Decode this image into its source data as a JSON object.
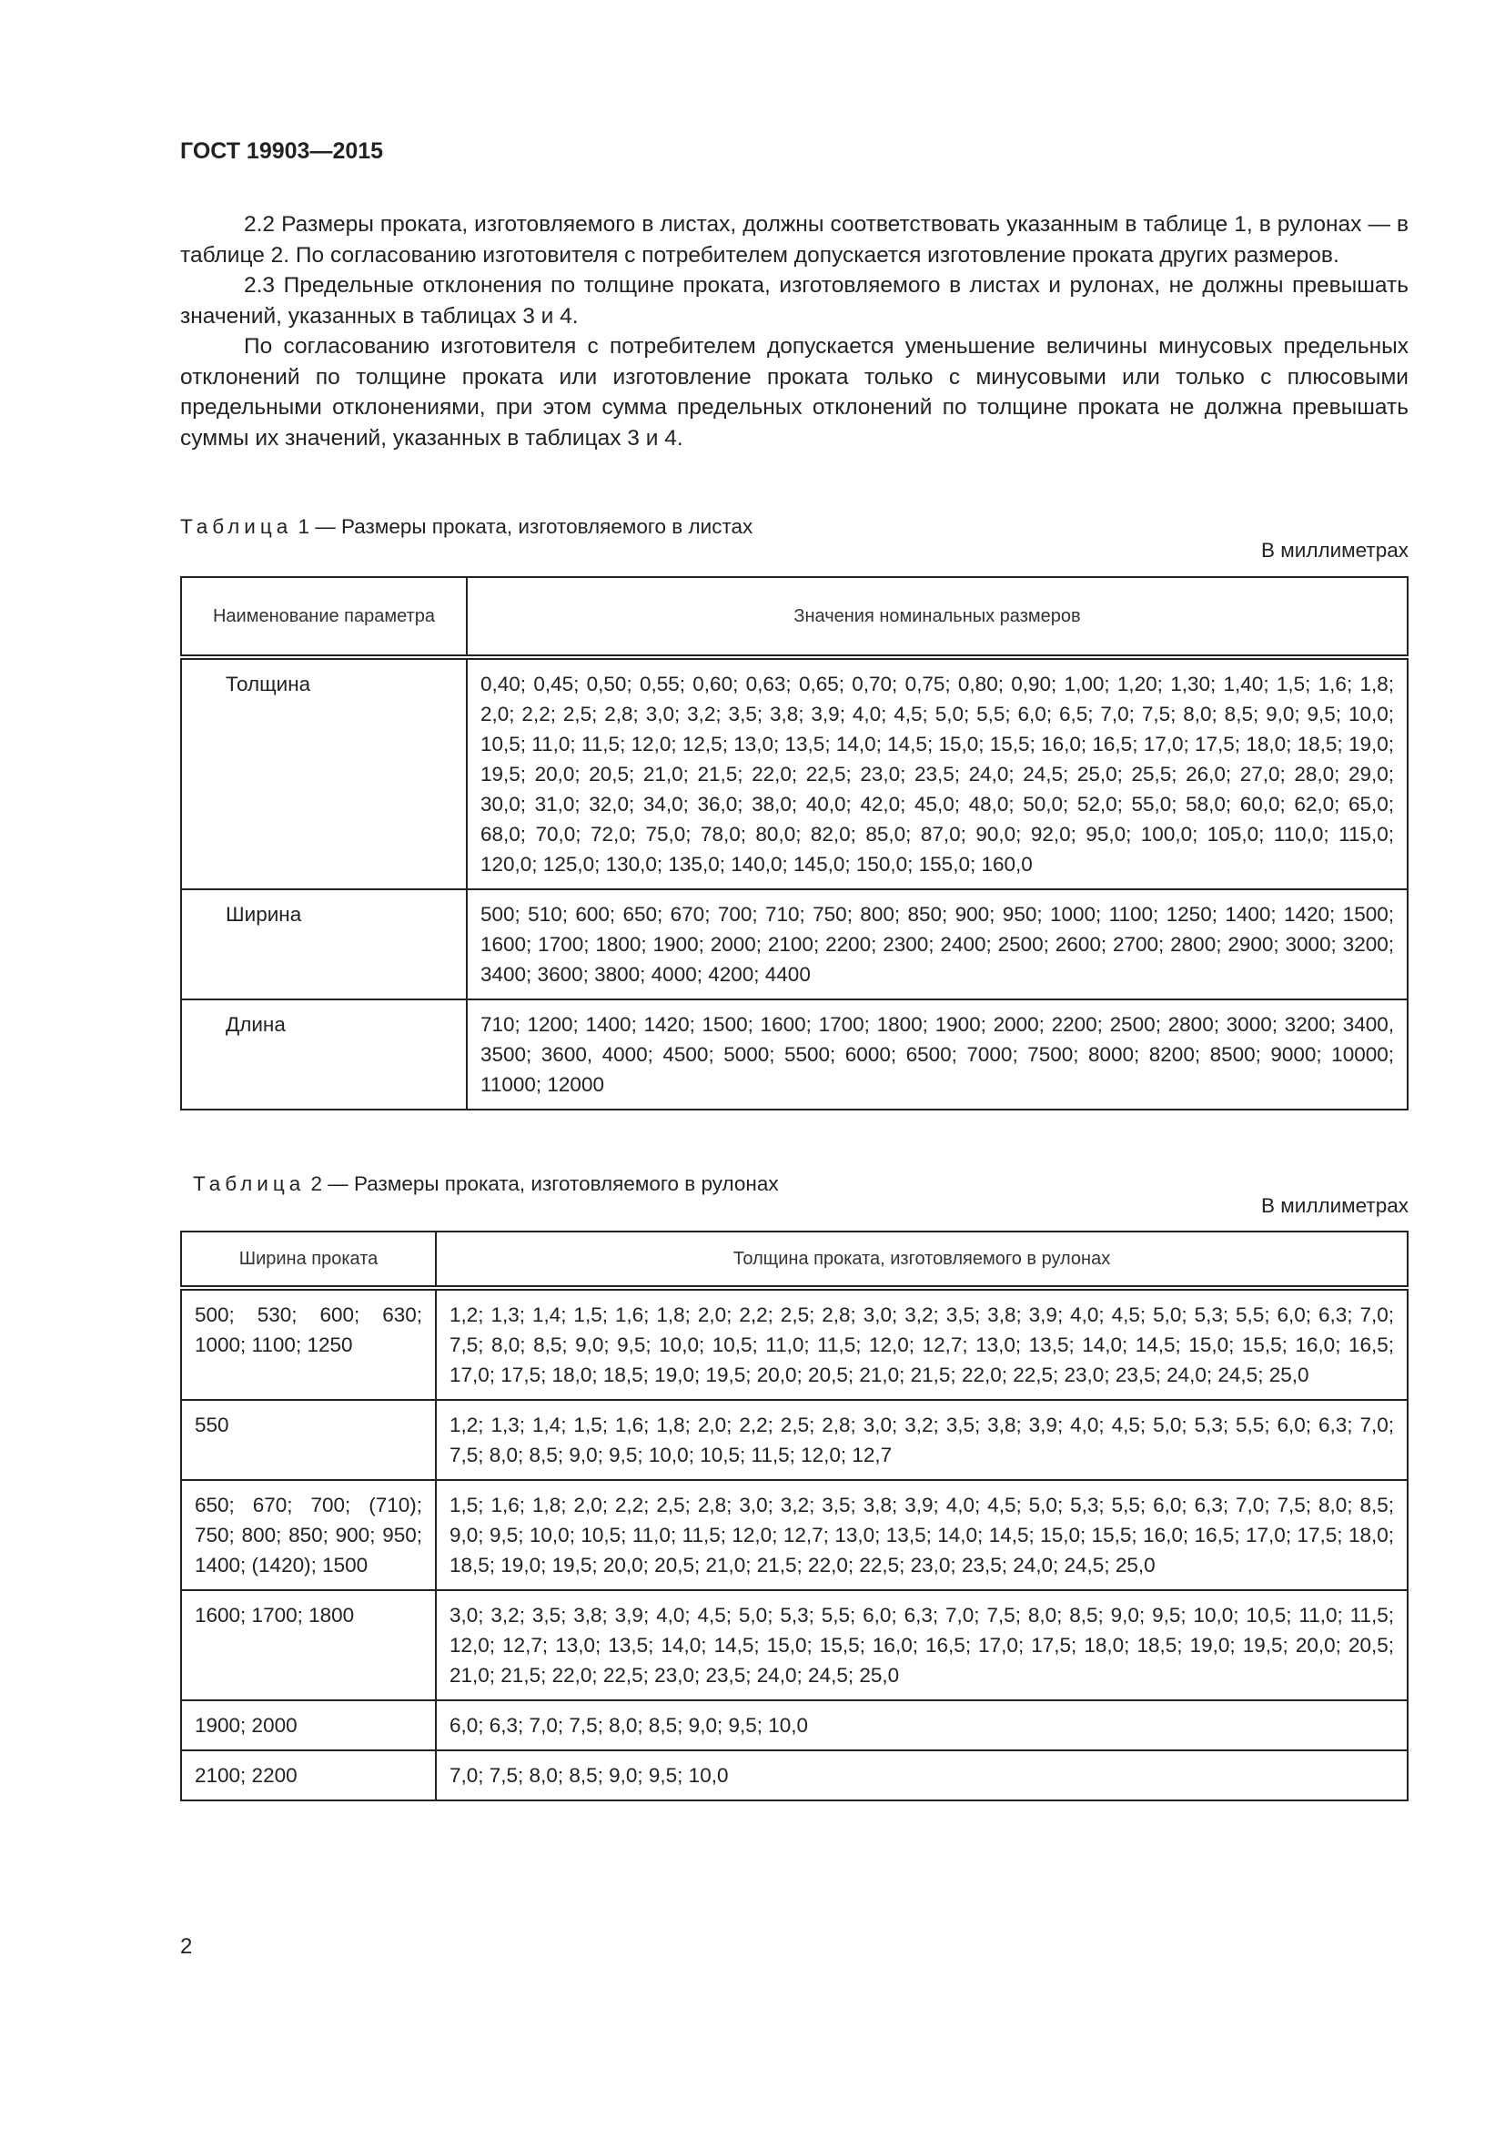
{
  "header": "ГОСТ 19903—2015",
  "paragraphs": [
    "2.2 Размеры проката, изготовляемого в листах, должны соответствовать указанным в таблице 1, в рулонах — в таблице 2. По согласованию изготовителя с потребителем допускается изготовление проката других размеров.",
    "2.3 Предельные отклонения по толщине проката, изготовляемого в листах и рулонах, не должны превышать значений, указанных в таблицах 3 и 4.",
    "По согласованию изготовителя с потребителем допускается уменьшение величины минусовых предельных отклонений по толщине проката или изготовление проката только с минусовыми или только с плюсовыми предельными отклонениями, при этом сумма предельных отклонений по толщине проката не должна превышать суммы их значений, указанных в таблицах 3 и 4."
  ],
  "table1": {
    "caption_word": "Таблица",
    "caption_rest": "1 — Размеры проката, изготовляемого в листах",
    "unit": "В миллиметрах",
    "headers": [
      "Наименование параметра",
      "Значения номинальных размеров"
    ],
    "rows": [
      [
        "Толщина",
        "0,40; 0,45; 0,50; 0,55; 0,60; 0,63; 0,65; 0,70; 0,75; 0,80; 0,90; 1,00; 1,20; 1,30; 1,40; 1,5; 1,6; 1,8; 2,0; 2,2; 2,5; 2,8; 3,0; 3,2; 3,5; 3,8; 3,9; 4,0; 4,5; 5,0; 5,5; 6,0; 6,5; 7,0; 7,5; 8,0; 8,5; 9,0; 9,5; 10,0; 10,5; 11,0; 11,5; 12,0; 12,5; 13,0; 13,5; 14,0; 14,5; 15,0; 15,5; 16,0; 16,5; 17,0; 17,5; 18,0; 18,5; 19,0; 19,5; 20,0; 20,5; 21,0; 21,5; 22,0; 22,5; 23,0; 23,5; 24,0; 24,5; 25,0; 25,5; 26,0; 27,0; 28,0; 29,0; 30,0; 31,0; 32,0; 34,0; 36,0; 38,0; 40,0; 42,0; 45,0; 48,0; 50,0; 52,0; 55,0; 58,0; 60,0; 62,0; 65,0; 68,0; 70,0; 72,0; 75,0; 78,0; 80,0; 82,0; 85,0; 87,0; 90,0; 92,0; 95,0; 100,0; 105,0; 110,0; 115,0; 120,0; 125,0; 130,0; 135,0; 140,0; 145,0; 150,0; 155,0; 160,0"
      ],
      [
        "Ширина",
        "500; 510; 600; 650; 670; 700; 710; 750; 800; 850; 900; 950; 1000; 1100; 1250; 1400; 1420; 1500; 1600; 1700; 1800; 1900; 2000; 2100; 2200; 2300; 2400; 2500; 2600; 2700; 2800; 2900; 3000; 3200; 3400; 3600; 3800; 4000; 4200; 4400"
      ],
      [
        "Длина",
        "710; 1200; 1400; 1420; 1500; 1600; 1700; 1800; 1900; 2000; 2200; 2500; 2800; 3000; 3200; 3400, 3500; 3600, 4000; 4500; 5000; 5500; 6000; 6500; 7000; 7500; 8000; 8200; 8500; 9000; 10000; 11000; 12000"
      ]
    ]
  },
  "table2": {
    "caption_word": "Таблица",
    "caption_rest": "2 — Размеры проката, изготовляемого в рулонах",
    "unit": "В миллиметрах",
    "headers": [
      "Ширина проката",
      "Толщина проката, изготовляемого в рулонах"
    ],
    "rows": [
      [
        "500; 530; 600; 630; 1000; 1100; 1250",
        "1,2; 1,3; 1,4; 1,5; 1,6; 1,8; 2,0; 2,2; 2,5; 2,8; 3,0; 3,2; 3,5; 3,8; 3,9; 4,0; 4,5; 5,0; 5,3; 5,5; 6,0; 6,3; 7,0; 7,5; 8,0; 8,5; 9,0; 9,5; 10,0; 10,5; 11,0; 11,5; 12,0; 12,7; 13,0; 13,5; 14,0; 14,5; 15,0; 15,5; 16,0; 16,5; 17,0; 17,5; 18,0; 18,5; 19,0; 19,5; 20,0; 20,5; 21,0; 21,5; 22,0; 22,5; 23,0; 23,5; 24,0; 24,5; 25,0"
      ],
      [
        "550",
        "1,2; 1,3; 1,4; 1,5; 1,6; 1,8; 2,0; 2,2; 2,5; 2,8; 3,0; 3,2; 3,5; 3,8; 3,9; 4,0; 4,5; 5,0; 5,3; 5,5; 6,0; 6,3; 7,0; 7,5; 8,0; 8,5; 9,0; 9,5; 10,0; 10,5; 11,5; 12,0; 12,7"
      ],
      [
        "650; 670; 700; (710); 750; 800; 850; 900; 950; 1400; (1420); 1500",
        "1,5; 1,6; 1,8; 2,0; 2,2; 2,5; 2,8; 3,0; 3,2; 3,5; 3,8; 3,9; 4,0; 4,5; 5,0; 5,3; 5,5; 6,0; 6,3; 7,0; 7,5; 8,0; 8,5; 9,0; 9,5; 10,0; 10,5; 11,0; 11,5; 12,0; 12,7; 13,0; 13,5; 14,0; 14,5; 15,0; 15,5; 16,0; 16,5; 17,0; 17,5; 18,0; 18,5; 19,0; 19,5; 20,0; 20,5; 21,0; 21,5; 22,0; 22,5; 23,0; 23,5; 24,0; 24,5; 25,0"
      ],
      [
        "1600; 1700; 1800",
        "3,0; 3,2; 3,5; 3,8; 3,9; 4,0; 4,5; 5,0; 5,3; 5,5; 6,0; 6,3; 7,0; 7,5; 8,0; 8,5; 9,0; 9,5; 10,0; 10,5; 11,0; 11,5; 12,0; 12,7; 13,0; 13,5; 14,0; 14,5; 15,0; 15,5; 16,0; 16,5; 17,0; 17,5; 18,0; 18,5; 19,0; 19,5; 20,0; 20,5; 21,0; 21,5; 22,0; 22,5; 23,0; 23,5; 24,0; 24,5; 25,0"
      ],
      [
        "1900; 2000",
        "6,0; 6,3; 7,0; 7,5; 8,0; 8,5; 9,0; 9,5; 10,0"
      ],
      [
        "2100; 2200",
        "7,0; 7,5; 8,0; 8,5; 9,0; 9,5; 10,0"
      ]
    ]
  },
  "page_number": "2"
}
